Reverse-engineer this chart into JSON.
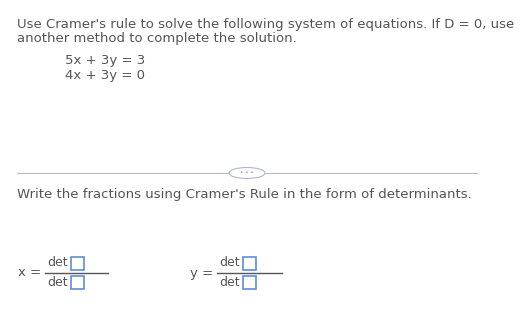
{
  "bg_color": "#ffffff",
  "text_color": "#555555",
  "line1": "Use Cramer's rule to solve the following system of equations. If D = 0, use",
  "line2": "another method to complete the solution.",
  "eq1": "5x + 3y = 3",
  "eq2": "4x + 3y = 0",
  "bottom_text": "Write the fractions using Cramer's Rule in the form of determinants.",
  "font_size_body": 9.5,
  "font_size_eq": 9.5,
  "font_size_det": 9.0,
  "divider_color": "#b0b8c8",
  "box_color": "#5b8dd9",
  "ellipsis_dots": "• • •"
}
